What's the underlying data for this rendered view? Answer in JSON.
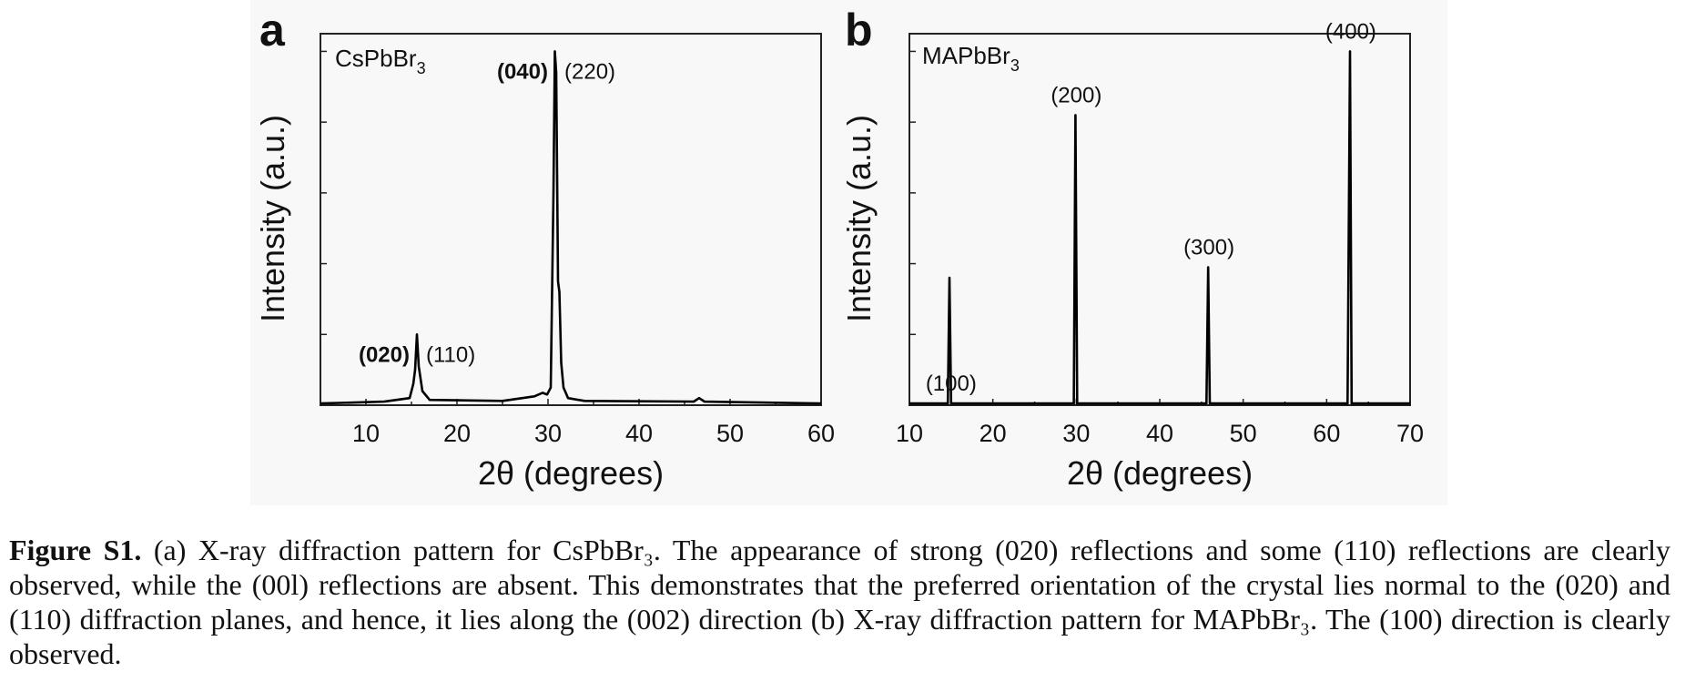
{
  "chart_data": [
    {
      "type": "line",
      "panel_label": "a",
      "sample_label": "CsPbBr",
      "sample_subscript": "3",
      "xlabel": "2θ (degrees)",
      "ylabel": "Intensity (a.u.)",
      "xlim": [
        5,
        60
      ],
      "ylim": [
        0,
        1.05
      ],
      "x_ticks": [
        10,
        20,
        30,
        40,
        50,
        60
      ],
      "y_ticks_labeled": false,
      "grid": false,
      "series": [
        {
          "x": [
            5,
            12,
            14.8,
            15.2,
            15.4,
            15.6,
            15.8,
            16.2,
            17,
            25,
            28.5,
            29.4,
            29.9,
            30.3,
            30.6,
            30.75,
            30.9,
            31.1,
            31.25,
            31.45,
            31.7,
            32.2,
            34,
            46,
            46.6,
            47.2,
            60
          ],
          "y": [
            0.005,
            0.01,
            0.02,
            0.06,
            0.1,
            0.2,
            0.11,
            0.04,
            0.015,
            0.012,
            0.025,
            0.035,
            0.03,
            0.05,
            0.6,
            1.0,
            0.94,
            0.35,
            0.32,
            0.12,
            0.05,
            0.02,
            0.012,
            0.01,
            0.02,
            0.01,
            0.005
          ]
        }
      ],
      "annotations": [
        {
          "bold": "(020)",
          "normal": "(110)",
          "x": 15.6
        },
        {
          "bold": "(040)",
          "normal": "(220)",
          "x": 30.8
        }
      ]
    },
    {
      "type": "line",
      "panel_label": "b",
      "sample_label": "MAPbBr",
      "sample_subscript": "3",
      "xlabel": "2θ (degrees)",
      "ylabel": "Intensity (a.u.)",
      "xlim": [
        10,
        70
      ],
      "ylim": [
        0,
        1.05
      ],
      "x_ticks": [
        10,
        20,
        30,
        40,
        50,
        60,
        70
      ],
      "y_ticks_labeled": false,
      "grid": false,
      "series": [
        {
          "x": [
            10,
            14.6,
            14.8,
            15.0,
            15.2,
            29.7,
            29.9,
            30.1,
            30.3,
            45.6,
            45.8,
            46.0,
            46.2,
            62.5,
            62.8,
            63.0,
            63.2,
            70
          ],
          "y": [
            0.005,
            0.005,
            0.36,
            0.005,
            0.005,
            0.005,
            0.82,
            0.005,
            0.005,
            0.005,
            0.39,
            0.005,
            0.005,
            0.005,
            1.0,
            0.005,
            0.005,
            0.005
          ]
        }
      ],
      "annotations": [
        {
          "label": "(100)",
          "x": 15.0
        },
        {
          "label": "(200)",
          "x": 30.0
        },
        {
          "label": "(300)",
          "x": 45.9
        },
        {
          "label": "(400)",
          "x": 62.9
        }
      ]
    }
  ],
  "caption": {
    "label": "Figure S1.",
    "text": " (a) X-ray diffraction pattern for CsPbBr₃. The appearance of strong (020) reflections and some (110) reflections are clearly observed, while the (00l) reflections are absent. This demonstrates that the preferred orientation of the crystal lies normal to the (020) and (110) diffraction planes, and hence, it lies along the (002) direction (b) X-ray diffraction pattern for MAPbBr₃. The (100) direction is clearly observed."
  }
}
